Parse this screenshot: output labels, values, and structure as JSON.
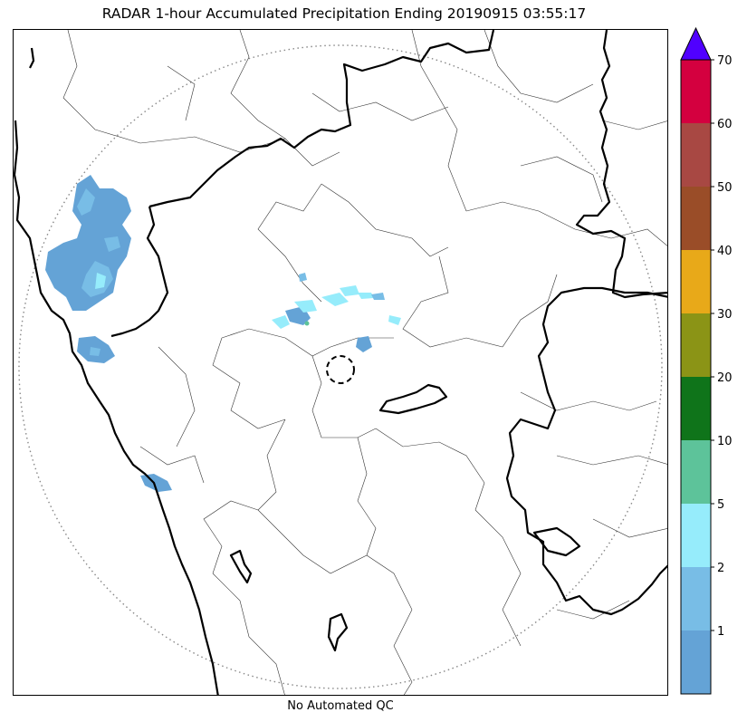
{
  "title": "RADAR 1-hour Accumulated Precipitation Ending 20190915 03:55:17",
  "footer": "No Automated QC",
  "legend": {
    "levels": [
      {
        "label": "",
        "color": "#64a3d6"
      },
      {
        "label": "1",
        "color": "#78bde6"
      },
      {
        "label": "2",
        "color": "#96ecfb"
      },
      {
        "label": "5",
        "color": "#5dc39a"
      },
      {
        "label": "10",
        "color": "#0f741a"
      },
      {
        "label": "20",
        "color": "#8b9416"
      },
      {
        "label": "30",
        "color": "#e8a919"
      },
      {
        "label": "40",
        "color": "#9a4d28"
      },
      {
        "label": "50",
        "color": "#a84843"
      },
      {
        "label": "60",
        "color": "#d4003f"
      }
    ],
    "top_label": "70",
    "over_color": "#5000ff"
  }
}
